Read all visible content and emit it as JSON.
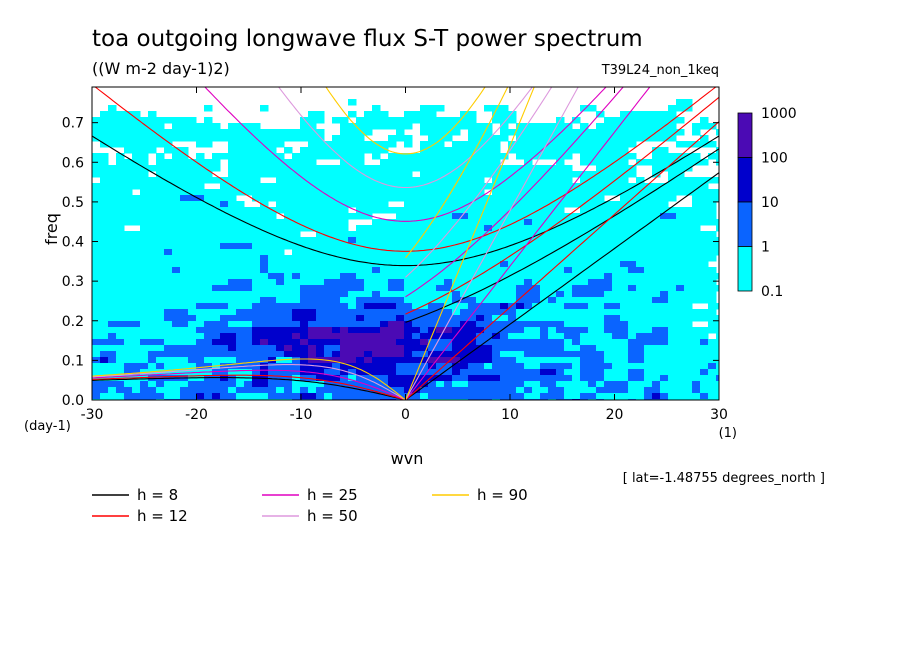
{
  "chart_data": {
    "type": "heatmap",
    "title": "toa outgoing longwave flux S-T power spectrum",
    "subtitle": "((W m-2 day-1)2)",
    "dataset_label": "T39L24_non_1keq",
    "xlabel": "wvn",
    "x_units": "(1)",
    "ylabel": "freq",
    "y_units": "(day-1)",
    "xlim": [
      -30,
      30
    ],
    "ylim": [
      0,
      0.79
    ],
    "x_ticks": [
      -30,
      -20,
      -10,
      0,
      10,
      20,
      30
    ],
    "y_ticks": [
      0.0,
      0.1,
      0.2,
      0.3,
      0.4,
      0.5,
      0.6,
      0.7
    ],
    "x_tick_labels": [
      "-30",
      "-20",
      "-10",
      "0",
      "10",
      "20",
      "30"
    ],
    "y_tick_labels": [
      "0.0",
      "0.1",
      "0.2",
      "0.3",
      "0.4",
      "0.5",
      "0.6",
      "0.7"
    ],
    "colorbar": {
      "levels": [
        "0.1",
        "1",
        "10",
        "100",
        "1000"
      ],
      "colors": [
        "#ffffff",
        "#00ffff",
        "#0a64ff",
        "#0000cc",
        "#4b0ab4"
      ]
    },
    "annotation": "[ lat=-1.48755 degrees_north ]",
    "dispersion_curves": [
      {
        "name": "h = 8",
        "h": 8,
        "color": "#000000"
      },
      {
        "name": "h = 12",
        "h": 12,
        "color": "#ff0000"
      },
      {
        "name": "h = 25",
        "h": 25,
        "color": "#e000c0"
      },
      {
        "name": "h = 50",
        "h": 50,
        "color": "#dd99dd"
      },
      {
        "name": "h = 90",
        "h": 90,
        "color": "#ffcc00"
      }
    ]
  }
}
